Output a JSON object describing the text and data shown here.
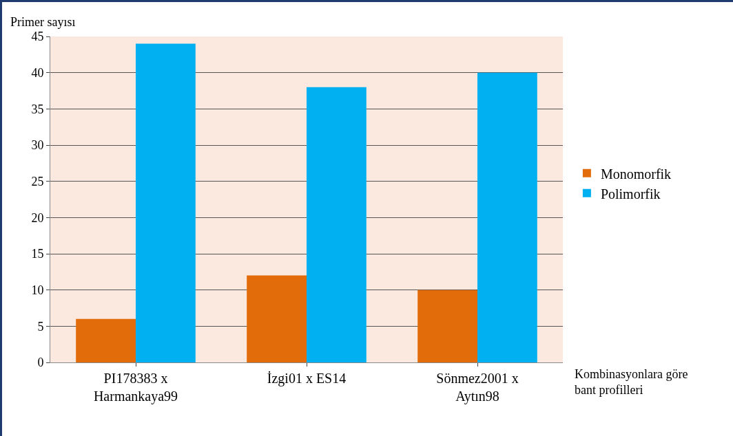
{
  "chart_data": {
    "type": "bar",
    "ylabel": "Primer sayısı",
    "xlabel": "Kombinasyonlara göre bant profilleri",
    "categories": [
      "PI178383 x Harmankaya99",
      "İzgi01 x ES14",
      "Sönmez2001 x Aytın98"
    ],
    "series": [
      {
        "name": "Monomorfik",
        "color": "#e36c0a",
        "values": [
          6,
          12,
          10
        ]
      },
      {
        "name": "Polimorfik",
        "color": "#00b0f0",
        "values": [
          44,
          38,
          40
        ]
      }
    ],
    "ylim": [
      0,
      45
    ],
    "yticks": [
      0,
      5,
      10,
      15,
      20,
      25,
      30,
      35,
      40,
      45
    ],
    "grid": "y",
    "legend": "right"
  }
}
